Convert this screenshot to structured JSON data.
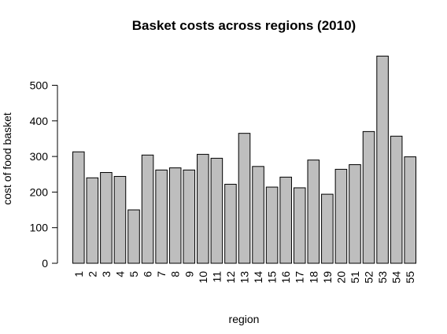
{
  "chart_data": {
    "type": "bar",
    "title": "Basket costs across regions (2010)",
    "xlabel": "region",
    "ylabel": "cost of food basket",
    "categories": [
      "1",
      "2",
      "3",
      "4",
      "5",
      "6",
      "7",
      "8",
      "9",
      "10",
      "11",
      "12",
      "13",
      "14",
      "15",
      "16",
      "17",
      "18",
      "19",
      "20",
      "51",
      "52",
      "53",
      "54",
      "55"
    ],
    "values": [
      313,
      240,
      255,
      244,
      150,
      304,
      262,
      268,
      262,
      306,
      295,
      222,
      365,
      272,
      214,
      242,
      212,
      290,
      194,
      264,
      277,
      370,
      582,
      357,
      299
    ],
    "yticks": [
      0,
      100,
      200,
      300,
      400,
      500
    ],
    "ylim": [
      0,
      585
    ],
    "grid": false,
    "legend": "none",
    "bar_color": "#bebebe",
    "border_color": "#000000"
  }
}
